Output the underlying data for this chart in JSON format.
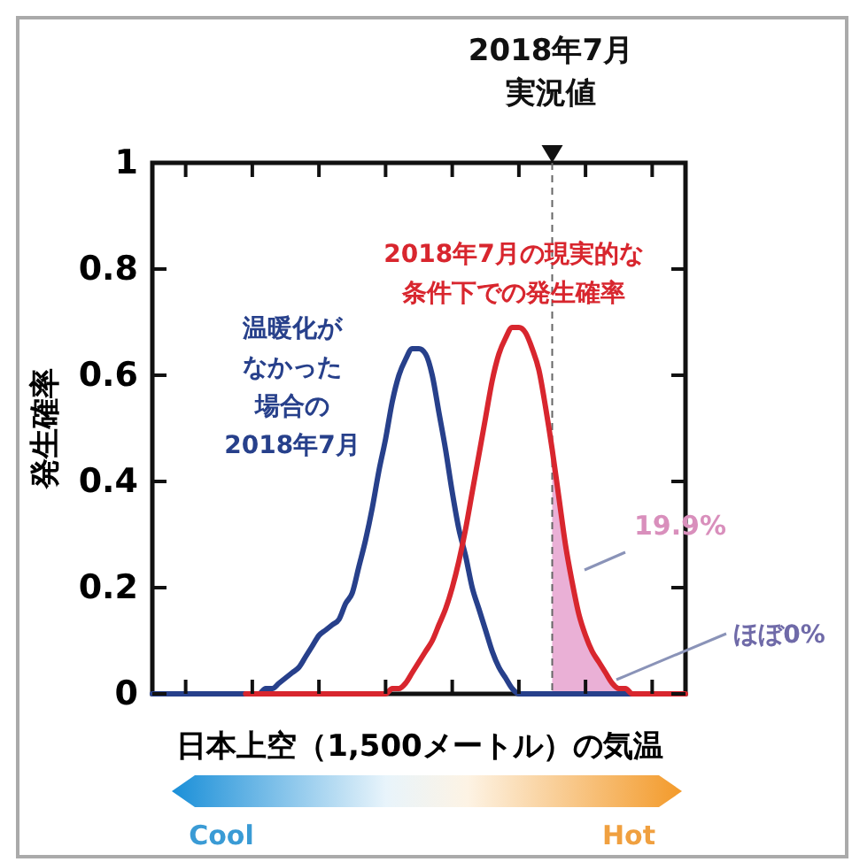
{
  "chart_data": {
    "type": "line",
    "xlabel": "日本上空（1,500メートル）の気温",
    "ylabel": "発生確率",
    "categories": [
      null,
      null,
      null,
      null,
      null,
      null,
      null,
      null,
      null,
      null,
      null,
      null,
      null,
      null,
      null,
      null,
      null,
      null,
      null,
      null,
      null,
      null,
      null,
      null,
      null,
      null,
      null,
      null,
      null,
      null,
      null,
      null,
      null,
      null,
      null,
      null,
      null,
      null,
      null,
      null,
      null,
      null,
      null,
      null,
      null,
      null,
      null,
      null,
      null,
      null,
      null,
      null,
      null,
      null,
      null,
      null,
      null,
      null,
      null,
      null,
      null,
      null,
      null,
      null,
      null,
      null,
      null,
      null,
      null,
      null,
      null,
      null,
      null,
      null,
      null,
      null,
      null,
      null,
      null,
      null,
      null
    ],
    "series": [
      {
        "name": "温暖化がなかった場合の2018年7月",
        "color": "#27408b",
        "values": [
          0,
          0,
          0,
          0,
          0,
          0,
          0,
          0,
          0,
          0,
          0,
          0,
          0,
          0,
          0,
          0,
          0,
          0.01,
          0.01,
          0.02,
          0.03,
          0.04,
          0.05,
          0.07,
          0.09,
          0.11,
          0.12,
          0.13,
          0.14,
          0.17,
          0.19,
          0.24,
          0.29,
          0.35,
          0.42,
          0.48,
          0.55,
          0.6,
          0.63,
          0.65,
          0.65,
          0.64,
          0.6,
          0.53,
          0.46,
          0.38,
          0.31,
          0.26,
          0.2,
          0.16,
          0.12,
          0.08,
          0.05,
          0.03,
          0.01,
          0,
          0,
          0,
          0,
          0,
          0,
          0,
          0,
          0,
          0,
          0,
          0,
          0,
          0,
          0,
          0,
          0,
          0,
          0,
          0,
          null,
          null,
          null,
          null,
          null,
          null
        ]
      },
      {
        "name": "2018年7月の現実的な条件下での発生確率",
        "color": "#d8262e",
        "values": [
          null,
          null,
          null,
          null,
          null,
          null,
          null,
          null,
          null,
          null,
          null,
          null,
          null,
          null,
          0,
          0,
          0,
          0,
          0,
          0,
          0,
          0,
          0,
          0,
          0,
          0,
          0,
          0,
          0,
          0,
          0,
          0,
          0,
          0,
          0,
          0,
          0.01,
          0.01,
          0.02,
          0.04,
          0.06,
          0.08,
          0.1,
          0.13,
          0.16,
          0.2,
          0.25,
          0.31,
          0.38,
          0.45,
          0.52,
          0.59,
          0.64,
          0.67,
          0.69,
          0.69,
          0.68,
          0.65,
          0.61,
          0.54,
          0.46,
          0.37,
          0.28,
          0.21,
          0.15,
          0.11,
          0.08,
          0.06,
          0.04,
          0.02,
          0.01,
          0.01,
          0,
          0,
          0,
          0,
          0,
          0,
          0,
          0,
          0
        ]
      },
      {
        "type": "area",
        "color": "#eab0d6",
        "values": [
          null,
          null,
          null,
          null,
          null,
          null,
          null,
          null,
          null,
          null,
          null,
          null,
          null,
          null,
          null,
          null,
          null,
          null,
          null,
          null,
          null,
          null,
          null,
          null,
          null,
          null,
          null,
          null,
          null,
          null,
          null,
          null,
          null,
          null,
          null,
          null,
          null,
          null,
          null,
          null,
          null,
          null,
          null,
          null,
          null,
          null,
          null,
          null,
          null,
          null,
          null,
          null,
          null,
          null,
          null,
          null,
          null,
          null,
          null,
          null,
          0.46,
          0.37,
          0.28,
          0.21,
          0.15,
          0.11,
          0.08,
          0.06,
          0.04,
          0.02,
          0.01,
          0.01,
          0,
          0,
          0,
          0,
          0,
          0,
          0,
          0,
          0
        ]
      }
    ],
    "ylim": [
      0,
      1
    ],
    "yticks": [
      0,
      0.2,
      0.4,
      0.6,
      0.8,
      1
    ],
    "tick_labels": "y",
    "annotations": [
      "19.9%",
      "ほぼ0%",
      "Cool",
      "Hot",
      "2018年7月実況値"
    ]
  }
}
